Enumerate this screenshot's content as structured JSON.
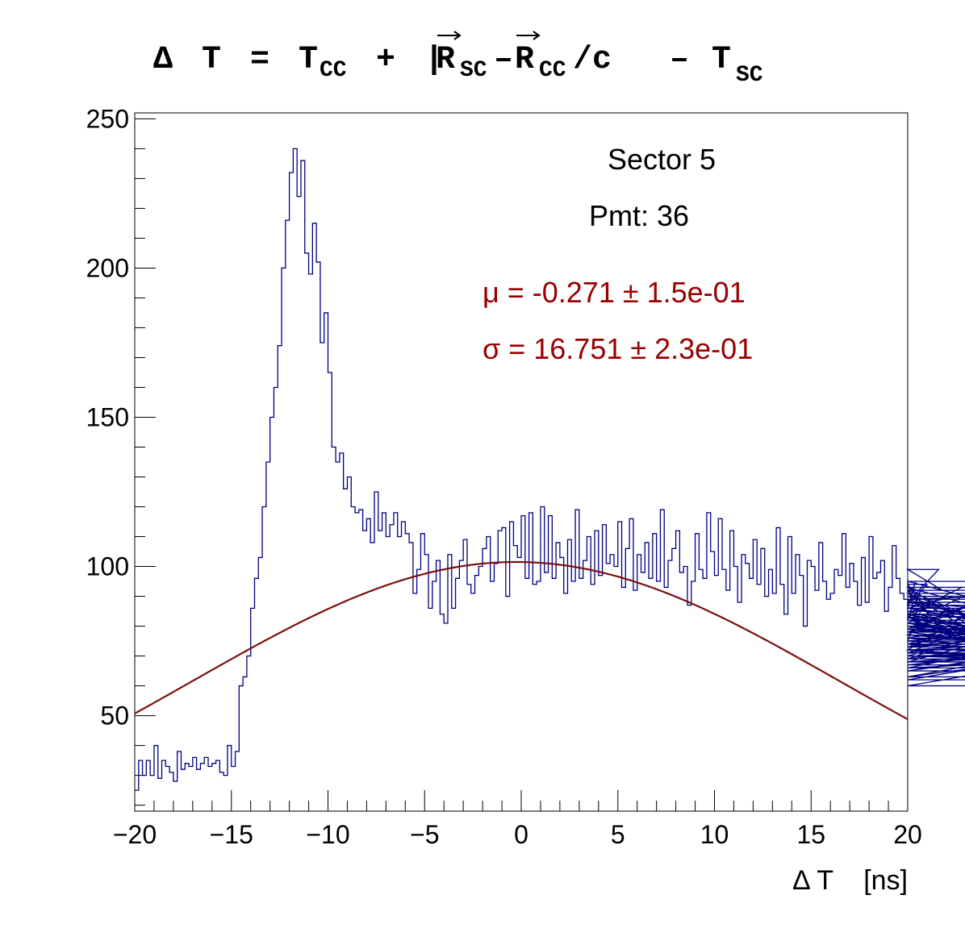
{
  "chart_data": {
    "type": "histogram",
    "title": {
      "delta": "Δ",
      "T": "T",
      "eq": "=",
      "plus": "+",
      "minus": "–",
      "slash_c": "/c",
      "R": "R",
      "sub_cc": "CC",
      "sub_sc": "SC"
    },
    "xlabel": "Δ T    [ns]",
    "x_range": [
      -20,
      20
    ],
    "y_range": [
      18,
      252
    ],
    "x_ticks": [
      "−20",
      "−15",
      "−10",
      "−5",
      "0",
      "5",
      "10",
      "15",
      "20"
    ],
    "x_tick_values": [
      -20,
      -15,
      -10,
      -5,
      0,
      5,
      10,
      15,
      20
    ],
    "y_ticks": [
      "50",
      "100",
      "150",
      "200",
      "250"
    ],
    "y_tick_values": [
      50,
      100,
      150,
      200,
      250
    ],
    "annotations": {
      "sector": "Sector 5",
      "pmt": "Pmt: 36",
      "mu": "μ = -0.271 ± 1.5e-01",
      "sigma": "σ = 16.751 ± 2.3e-01"
    },
    "histogram": {
      "x_start": -20,
      "bin_width": 0.2,
      "counts": [
        25,
        35,
        30,
        35,
        30,
        40,
        29,
        35,
        33,
        31,
        28,
        38,
        32,
        34,
        33,
        36,
        32,
        34,
        36,
        33,
        34,
        35,
        31,
        30,
        40,
        33,
        38,
        60,
        63,
        70,
        86,
        96,
        103,
        120,
        135,
        150,
        160,
        174,
        200,
        216,
        232,
        240,
        224,
        236,
        205,
        198,
        215,
        202,
        175,
        185,
        165,
        140,
        135,
        138,
        126,
        130,
        120,
        118,
        119,
        112,
        116,
        108,
        125,
        112,
        118,
        110,
        114,
        118,
        110,
        115,
        111,
        108,
        91,
        99,
        111,
        104,
        86,
        95,
        102,
        84,
        81,
        104,
        86,
        96,
        102,
        109,
        94,
        91,
        97,
        100,
        106,
        110,
        95,
        101,
        112,
        113,
        90,
        115,
        107,
        103,
        117,
        96,
        118,
        94,
        95,
        120,
        98,
        117,
        96,
        108,
        103,
        91,
        109,
        95,
        119,
        96,
        102,
        110,
        94,
        112,
        97,
        114,
        101,
        104,
        100,
        115,
        93,
        106,
        116,
        92,
        104,
        98,
        108,
        96,
        111,
        95,
        119,
        93,
        102,
        106,
        112,
        98,
        100,
        87,
        95,
        111,
        99,
        96,
        118,
        105,
        97,
        116,
        99,
        92,
        112,
        100,
        88,
        104,
        101,
        96,
        109,
        94,
        106,
        90,
        99,
        91,
        113,
        94,
        84,
        110,
        91,
        104,
        97,
        80,
        102,
        100,
        92,
        108,
        95,
        89,
        91,
        99,
        97,
        111,
        93,
        101,
        95,
        87,
        103,
        88,
        110,
        96,
        98,
        102,
        85,
        93,
        107,
        96,
        91,
        89,
        82,
        86,
        95,
        75,
        87,
        94,
        83,
        88,
        99,
        92,
        77,
        86,
        90,
        84,
        93,
        81,
        91,
        78,
        88,
        86,
        83,
        72,
        89,
        90,
        79,
        92,
        78,
        87,
        83,
        74,
        86,
        79,
        95,
        84,
        82,
        80,
        73,
        89,
        76,
        85,
        71,
        93,
        78,
        81,
        70,
        86,
        75,
        82,
        69,
        91,
        66,
        79,
        74,
        83,
        72,
        76,
        68,
        88,
        73,
        80,
        65,
        77,
        71,
        84,
        62,
        76,
        73,
        81,
        68,
        75,
        70,
        72,
        63,
        80,
        74,
        70,
        67,
        78,
        66,
        71,
        69,
        84,
        63,
        77,
        72,
        74,
        60,
        79,
        68,
        72,
        65,
        81,
        70,
        67,
        79
      ]
    },
    "fit": {
      "type": "gaussian",
      "mean": -0.271,
      "sigma": 16.751,
      "amplitude": 101.5
    },
    "colors": {
      "histogram": "#000080",
      "fit": "#7a1010",
      "fit_text": "#990000",
      "axis": "#000000"
    }
  }
}
